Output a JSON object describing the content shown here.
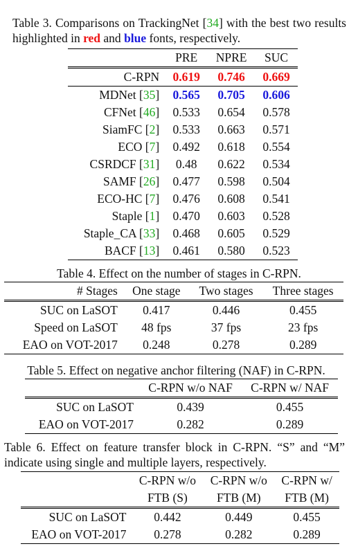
{
  "table3": {
    "caption_parts": [
      "Table 3. Comparisons on TrackingNet [",
      "34",
      "] with the best two results highlighted in ",
      "red",
      " and ",
      "blue",
      " fonts, respectively."
    ],
    "headers": [
      "",
      "PRE",
      "NPRE",
      "SUC"
    ],
    "top_row": {
      "name": "C-RPN",
      "cite": "",
      "values": [
        "0.619",
        "0.746",
        "0.669"
      ],
      "style": "red"
    },
    "rows": [
      {
        "name": "MDNet",
        "cite": "35",
        "values": [
          "0.565",
          "0.705",
          "0.606"
        ],
        "style": "blue"
      },
      {
        "name": "CFNet",
        "cite": "46",
        "values": [
          "0.533",
          "0.654",
          "0.578"
        ],
        "style": ""
      },
      {
        "name": "SiamFC",
        "cite": "2",
        "values": [
          "0.533",
          "0.663",
          "0.571"
        ],
        "style": ""
      },
      {
        "name": "ECO",
        "cite": "7",
        "values": [
          "0.492",
          "0.618",
          "0.554"
        ],
        "style": ""
      },
      {
        "name": "CSRDCF",
        "cite": "31",
        "values": [
          "0.48",
          "0.622",
          "0.534"
        ],
        "style": ""
      },
      {
        "name": "SAMF",
        "cite": "26",
        "values": [
          "0.477",
          "0.598",
          "0.504"
        ],
        "style": ""
      },
      {
        "name": "ECO-HC",
        "cite": "7",
        "values": [
          "0.476",
          "0.608",
          "0.541"
        ],
        "style": ""
      },
      {
        "name": "Staple",
        "cite": "1",
        "values": [
          "0.470",
          "0.603",
          "0.528"
        ],
        "style": ""
      },
      {
        "name": "Staple_CA",
        "cite": "33",
        "values": [
          "0.468",
          "0.605",
          "0.529"
        ],
        "style": ""
      },
      {
        "name": "BACF",
        "cite": "13",
        "values": [
          "0.461",
          "0.580",
          "0.523"
        ],
        "style": ""
      }
    ],
    "colors": {
      "red": "#ee1111",
      "blue": "#1a1adc",
      "cite": "#22aa22"
    }
  },
  "table4": {
    "caption": "Table 4. Effect on the number of stages in C-RPN.",
    "headers": [
      "# Stages",
      "One stage",
      "Two stages",
      "Three stages"
    ],
    "rows": [
      [
        "SUC on LaSOT",
        "0.417",
        "0.446",
        "0.455"
      ],
      [
        "Speed on LaSOT",
        "48 fps",
        "37 fps",
        "23 fps"
      ],
      [
        "EAO on VOT-2017",
        "0.248",
        "0.278",
        "0.289"
      ]
    ]
  },
  "table5": {
    "caption": "Table 5. Effect on negative anchor filtering (NAF) in C-RPN.",
    "headers": [
      "",
      "C-RPN w/o NAF",
      "C-RPN w/ NAF"
    ],
    "rows": [
      [
        "SUC on LaSOT",
        "0.439",
        "0.455"
      ],
      [
        "EAO on VOT-2017",
        "0.282",
        "0.289"
      ]
    ]
  },
  "table6": {
    "caption": "Table 6. Effect on feature transfer block in C-RPN. “S” and “M” indicate using single and multiple layers, respectively.",
    "headers_line1": [
      "",
      "C-RPN w/o",
      "C-RPN w/o",
      "C-RPN w/"
    ],
    "headers_line2": [
      "",
      "FTB (S)",
      "FTB (M)",
      "FTB (M)"
    ],
    "rows": [
      [
        "SUC on LaSOT",
        "0.442",
        "0.449",
        "0.455"
      ],
      [
        "EAO on VOT-2017",
        "0.278",
        "0.282",
        "0.289"
      ]
    ]
  }
}
